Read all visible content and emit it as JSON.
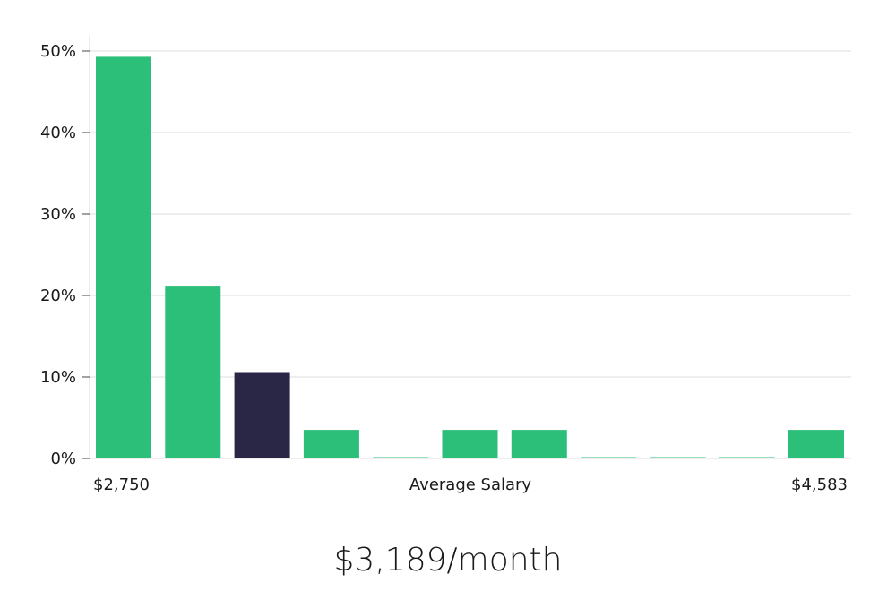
{
  "chart_data": {
    "type": "bar",
    "title": "",
    "xlabel": "Average Salary",
    "ylabel": "",
    "x_range_labels": [
      "$2,750",
      "$4,583"
    ],
    "ylim": [
      0,
      50
    ],
    "y_ticks": [
      0,
      10,
      20,
      30,
      40,
      50
    ],
    "y_tick_labels": [
      "0%",
      "10%",
      "20%",
      "30%",
      "40%",
      "50%"
    ],
    "grid": true,
    "legend": "none",
    "bar_color": "#2bbf79",
    "highlight_color": "#2a2646",
    "highlight_index": 2,
    "values": [
      49.3,
      21.2,
      10.6,
      3.5,
      0,
      3.5,
      3.5,
      0,
      0,
      0,
      3.5
    ]
  },
  "summary": {
    "salary_text": "$3,189/month"
  }
}
